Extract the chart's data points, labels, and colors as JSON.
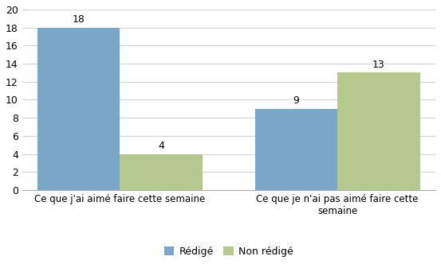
{
  "categories": [
    "Ce que j'ai aimé faire cette semaine",
    "Ce que je n'ai pas aimé faire cette\nsemaine"
  ],
  "series": {
    "Rédigé": [
      18,
      9
    ],
    "Non rédigé": [
      4,
      13
    ]
  },
  "bar_colors": {
    "Rédigé": "#7aa7c7",
    "Non rédigé": "#b5c98e"
  },
  "ylim": [
    0,
    20
  ],
  "yticks": [
    0,
    2,
    4,
    6,
    8,
    10,
    12,
    14,
    16,
    18,
    20
  ],
  "bar_width": 0.38,
  "x_positions": [
    0.3,
    1.3
  ],
  "legend_labels": [
    "Rédigé",
    "Non rédigé"
  ],
  "background_color": "#ffffff",
  "grid_color": "#d3d3d3",
  "label_fontsize": 8.5,
  "tick_fontsize": 9,
  "legend_fontsize": 9,
  "value_fontsize": 9
}
